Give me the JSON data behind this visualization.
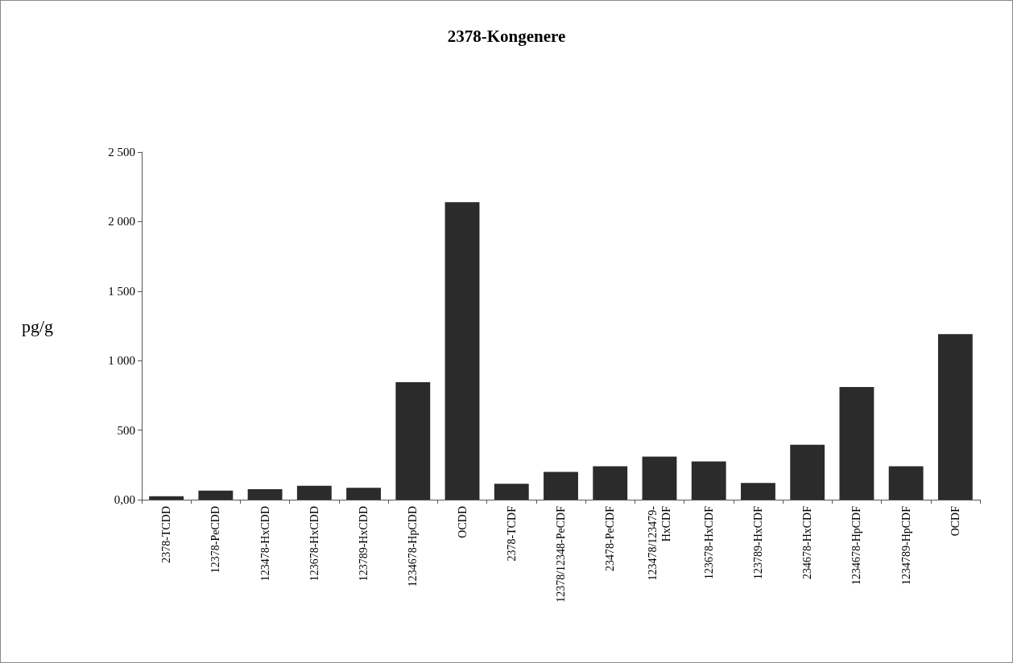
{
  "chart_data": {
    "type": "bar",
    "title": "2378-Kongenere",
    "ylabel": "pg/g",
    "categories": [
      "2378-TCDD",
      "12378-PeCDD",
      "123478-HxCDD",
      "123678-HxCDD",
      "123789-HxCDD",
      "1234678-HpCDD",
      "OCDD",
      "2378-TCDF",
      "12378/12348-PeCDF",
      "23478-PeCDF",
      "123478/123479-\nHxCDF",
      "123678-HxCDF",
      "123789-HxCDF",
      "234678-HxCDF",
      "1234678-HpCDF",
      "1234789-HpCDF",
      "OCDF"
    ],
    "values": [
      25,
      65,
      75,
      100,
      85,
      845,
      2140,
      115,
      200,
      240,
      310,
      275,
      120,
      395,
      810,
      240,
      1190
    ],
    "color": "#2b2b2b",
    "ylim": [
      0,
      2500
    ],
    "yticks": [
      {
        "value": 0,
        "label": "0,00"
      },
      500,
      {
        "value": 1000,
        "label": "1 000"
      },
      {
        "value": 1500,
        "label": "1 500"
      },
      {
        "value": 2000,
        "label": "2 000"
      },
      {
        "value": 2500,
        "label": "2 500"
      }
    ],
    "grid": false
  }
}
